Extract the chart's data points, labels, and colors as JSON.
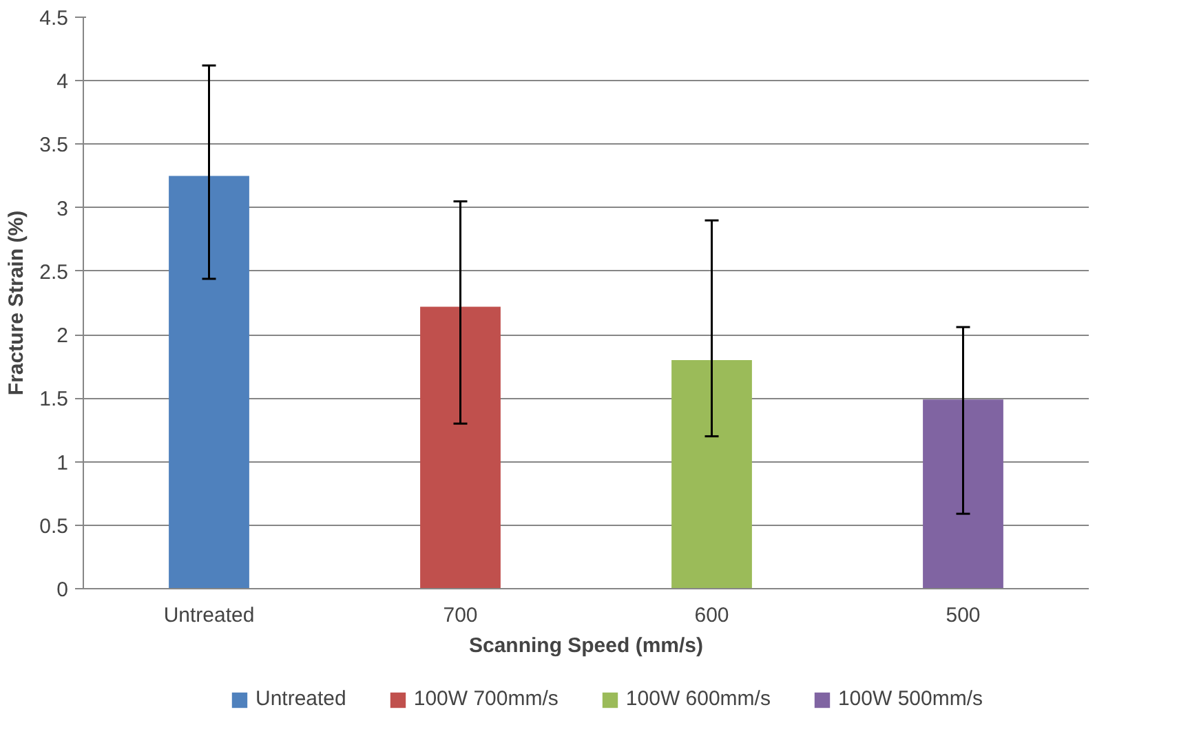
{
  "chart_data": {
    "type": "bar",
    "xlabel": "Scanning Speed (mm/s)",
    "ylabel": "Fracture Strain (%)",
    "categories": [
      "Untreated",
      "700",
      "600",
      "500"
    ],
    "series": [
      {
        "name": "Untreated",
        "color": "#4f81bd",
        "values": [
          3.25,
          null,
          null,
          null
        ],
        "errors": [
          [
            2.44,
            4.12
          ],
          null,
          null,
          null
        ]
      },
      {
        "name": "100W 700mm/s",
        "color": "#c0504d",
        "values": [
          null,
          2.22,
          null,
          null
        ],
        "errors": [
          null,
          [
            1.3,
            3.05
          ],
          null,
          null
        ]
      },
      {
        "name": "100W 600mm/s",
        "color": "#9bbb59",
        "values": [
          null,
          null,
          1.8,
          null
        ],
        "errors": [
          null,
          null,
          [
            1.2,
            2.9
          ],
          null
        ]
      },
      {
        "name": "100W 500mm/s",
        "color": "#8064a2",
        "values": [
          null,
          null,
          null,
          1.49
        ],
        "errors": [
          null,
          null,
          null,
          [
            0.59,
            2.06
          ]
        ]
      }
    ],
    "ylim": [
      0,
      4.5
    ],
    "yticks": [
      0,
      0.5,
      1,
      1.5,
      2,
      2.5,
      3,
      3.5,
      4,
      4.5
    ],
    "grid": "y",
    "legend": "bottom"
  }
}
